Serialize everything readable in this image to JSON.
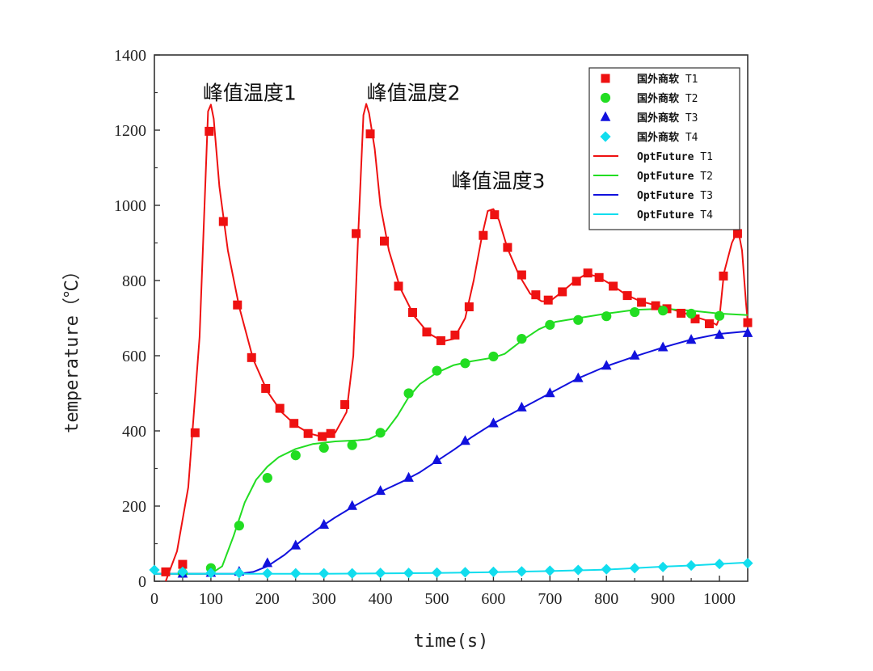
{
  "chart_data": {
    "type": "line",
    "title": "",
    "xlabel": "time(s)",
    "ylabel": "temperature（℃）",
    "xlim": [
      0,
      1050
    ],
    "ylim": [
      0,
      1400
    ],
    "xticks": [
      0,
      100,
      200,
      300,
      400,
      500,
      600,
      700,
      800,
      900,
      1000
    ],
    "yticks": [
      0,
      200,
      400,
      600,
      800,
      1000,
      1200,
      1400
    ],
    "grid": false,
    "legend_position": "top-right",
    "annotations": [
      {
        "text": "峰值温度1",
        "x": 100,
        "y": 1270
      },
      {
        "text": "峰值温度2",
        "x": 390,
        "y": 1270
      },
      {
        "text": "峰值温度3",
        "x": 540,
        "y": 1035
      }
    ],
    "series": [
      {
        "name": "国外商软",
        "suffix": "T1",
        "kind": "marker",
        "marker": "square",
        "color": "#ee1111",
        "points": [
          [
            20,
            25
          ],
          [
            50,
            45
          ],
          [
            72,
            395
          ],
          [
            97,
            1197
          ],
          [
            122,
            957
          ],
          [
            147,
            735
          ],
          [
            172,
            595
          ],
          [
            197,
            513
          ],
          [
            222,
            460
          ],
          [
            247,
            420
          ],
          [
            272,
            393
          ],
          [
            297,
            385
          ],
          [
            312,
            393
          ],
          [
            337,
            470
          ],
          [
            357,
            925
          ],
          [
            382,
            1190
          ],
          [
            407,
            905
          ],
          [
            432,
            785
          ],
          [
            457,
            715
          ],
          [
            482,
            663
          ],
          [
            507,
            640
          ],
          [
            532,
            655
          ],
          [
            557,
            730
          ],
          [
            582,
            920
          ],
          [
            602,
            975
          ],
          [
            625,
            888
          ],
          [
            650,
            815
          ],
          [
            675,
            762
          ],
          [
            697,
            748
          ],
          [
            722,
            770
          ],
          [
            747,
            798
          ],
          [
            767,
            820
          ],
          [
            787,
            808
          ],
          [
            812,
            785
          ],
          [
            837,
            760
          ],
          [
            862,
            742
          ],
          [
            887,
            733
          ],
          [
            907,
            725
          ],
          [
            932,
            713
          ],
          [
            957,
            698
          ],
          [
            982,
            685
          ],
          [
            1007,
            812
          ],
          [
            1032,
            925
          ],
          [
            1050,
            688
          ]
        ]
      },
      {
        "name": "国外商软",
        "suffix": "T2",
        "kind": "marker",
        "marker": "circle",
        "color": "#22dd22",
        "points": [
          [
            50,
            22
          ],
          [
            100,
            35
          ],
          [
            150,
            148
          ],
          [
            200,
            275
          ],
          [
            250,
            335
          ],
          [
            300,
            355
          ],
          [
            350,
            362
          ],
          [
            400,
            395
          ],
          [
            450,
            500
          ],
          [
            500,
            560
          ],
          [
            550,
            580
          ],
          [
            600,
            598
          ],
          [
            650,
            645
          ],
          [
            700,
            682
          ],
          [
            750,
            695
          ],
          [
            800,
            705
          ],
          [
            850,
            716
          ],
          [
            900,
            720
          ],
          [
            950,
            712
          ],
          [
            1000,
            706
          ]
        ]
      },
      {
        "name": "国外商软",
        "suffix": "T3",
        "kind": "marker",
        "marker": "triangle",
        "color": "#1111dd",
        "points": [
          [
            50,
            20
          ],
          [
            100,
            22
          ],
          [
            150,
            25
          ],
          [
            200,
            48
          ],
          [
            250,
            95
          ],
          [
            300,
            150
          ],
          [
            350,
            200
          ],
          [
            400,
            240
          ],
          [
            450,
            275
          ],
          [
            500,
            322
          ],
          [
            550,
            373
          ],
          [
            600,
            420
          ],
          [
            650,
            462
          ],
          [
            700,
            500
          ],
          [
            750,
            540
          ],
          [
            800,
            573
          ],
          [
            850,
            600
          ],
          [
            900,
            622
          ],
          [
            950,
            642
          ],
          [
            1000,
            655
          ],
          [
            1050,
            660
          ]
        ]
      },
      {
        "name": "国外商软",
        "suffix": "T4",
        "kind": "marker",
        "marker": "diamond",
        "color": "#11ddee",
        "points": [
          [
            0,
            30
          ],
          [
            50,
            25
          ],
          [
            100,
            22
          ],
          [
            150,
            22
          ],
          [
            200,
            21
          ],
          [
            250,
            21
          ],
          [
            300,
            21
          ],
          [
            350,
            21
          ],
          [
            400,
            22
          ],
          [
            450,
            22
          ],
          [
            500,
            23
          ],
          [
            550,
            24
          ],
          [
            600,
            25
          ],
          [
            650,
            26
          ],
          [
            700,
            28
          ],
          [
            750,
            30
          ],
          [
            800,
            32
          ],
          [
            850,
            35
          ],
          [
            900,
            38
          ],
          [
            950,
            42
          ],
          [
            1000,
            46
          ],
          [
            1050,
            48
          ]
        ]
      },
      {
        "name": "OptFuture",
        "suffix": "T1",
        "kind": "line",
        "color": "#ee1111",
        "points": [
          [
            20,
            0
          ],
          [
            40,
            80
          ],
          [
            60,
            250
          ],
          [
            80,
            650
          ],
          [
            95,
            1250
          ],
          [
            100,
            1268
          ],
          [
            105,
            1230
          ],
          [
            115,
            1050
          ],
          [
            130,
            880
          ],
          [
            150,
            730
          ],
          [
            175,
            590
          ],
          [
            200,
            505
          ],
          [
            225,
            450
          ],
          [
            250,
            415
          ],
          [
            275,
            393
          ],
          [
            300,
            383
          ],
          [
            320,
            395
          ],
          [
            340,
            450
          ],
          [
            352,
            600
          ],
          [
            360,
            900
          ],
          [
            370,
            1240
          ],
          [
            375,
            1270
          ],
          [
            380,
            1245
          ],
          [
            390,
            1150
          ],
          [
            400,
            1000
          ],
          [
            415,
            880
          ],
          [
            435,
            780
          ],
          [
            460,
            705
          ],
          [
            485,
            660
          ],
          [
            510,
            638
          ],
          [
            530,
            645
          ],
          [
            550,
            700
          ],
          [
            565,
            800
          ],
          [
            580,
            920
          ],
          [
            590,
            985
          ],
          [
            600,
            990
          ],
          [
            610,
            960
          ],
          [
            625,
            885
          ],
          [
            645,
            815
          ],
          [
            665,
            765
          ],
          [
            685,
            745
          ],
          [
            700,
            745
          ],
          [
            720,
            768
          ],
          [
            745,
            800
          ],
          [
            765,
            818
          ],
          [
            785,
            810
          ],
          [
            810,
            788
          ],
          [
            835,
            762
          ],
          [
            860,
            745
          ],
          [
            885,
            735
          ],
          [
            910,
            726
          ],
          [
            935,
            715
          ],
          [
            960,
            702
          ],
          [
            985,
            690
          ],
          [
            995,
            682
          ],
          [
            1000,
            700
          ],
          [
            1008,
            820
          ],
          [
            1022,
            900
          ],
          [
            1033,
            935
          ],
          [
            1040,
            880
          ],
          [
            1047,
            740
          ],
          [
            1050,
            690
          ]
        ]
      },
      {
        "name": "OptFuture",
        "suffix": "T2",
        "kind": "line",
        "color": "#22dd22",
        "points": [
          [
            0,
            20
          ],
          [
            100,
            20
          ],
          [
            120,
            40
          ],
          [
            140,
            120
          ],
          [
            160,
            210
          ],
          [
            180,
            270
          ],
          [
            200,
            305
          ],
          [
            220,
            330
          ],
          [
            250,
            352
          ],
          [
            280,
            365
          ],
          [
            320,
            372
          ],
          [
            360,
            375
          ],
          [
            380,
            378
          ],
          [
            410,
            400
          ],
          [
            430,
            440
          ],
          [
            450,
            490
          ],
          [
            470,
            525
          ],
          [
            500,
            555
          ],
          [
            530,
            575
          ],
          [
            560,
            585
          ],
          [
            600,
            595
          ],
          [
            620,
            605
          ],
          [
            650,
            640
          ],
          [
            680,
            670
          ],
          [
            710,
            690
          ],
          [
            750,
            700
          ],
          [
            800,
            712
          ],
          [
            850,
            722
          ],
          [
            900,
            725
          ],
          [
            950,
            720
          ],
          [
            1000,
            712
          ],
          [
            1050,
            708
          ]
        ]
      },
      {
        "name": "OptFuture",
        "suffix": "T3",
        "kind": "line",
        "color": "#1111dd",
        "points": [
          [
            0,
            20
          ],
          [
            150,
            20
          ],
          [
            175,
            25
          ],
          [
            200,
            40
          ],
          [
            230,
            70
          ],
          [
            260,
            108
          ],
          [
            290,
            140
          ],
          [
            320,
            170
          ],
          [
            350,
            197
          ],
          [
            380,
            222
          ],
          [
            410,
            245
          ],
          [
            440,
            266
          ],
          [
            470,
            290
          ],
          [
            500,
            320
          ],
          [
            530,
            350
          ],
          [
            560,
            382
          ],
          [
            600,
            420
          ],
          [
            650,
            460
          ],
          [
            700,
            500
          ],
          [
            750,
            540
          ],
          [
            800,
            572
          ],
          [
            850,
            598
          ],
          [
            900,
            622
          ],
          [
            950,
            643
          ],
          [
            1000,
            658
          ],
          [
            1050,
            665
          ]
        ]
      },
      {
        "name": "OptFuture",
        "suffix": "T4",
        "kind": "line",
        "color": "#11ddee",
        "points": [
          [
            0,
            20
          ],
          [
            100,
            20
          ],
          [
            200,
            20
          ],
          [
            300,
            20
          ],
          [
            400,
            21
          ],
          [
            500,
            22
          ],
          [
            600,
            24
          ],
          [
            700,
            27
          ],
          [
            750,
            29
          ],
          [
            800,
            31
          ],
          [
            850,
            35
          ],
          [
            900,
            39
          ],
          [
            950,
            42
          ],
          [
            1000,
            46
          ],
          [
            1050,
            50
          ]
        ]
      }
    ]
  }
}
